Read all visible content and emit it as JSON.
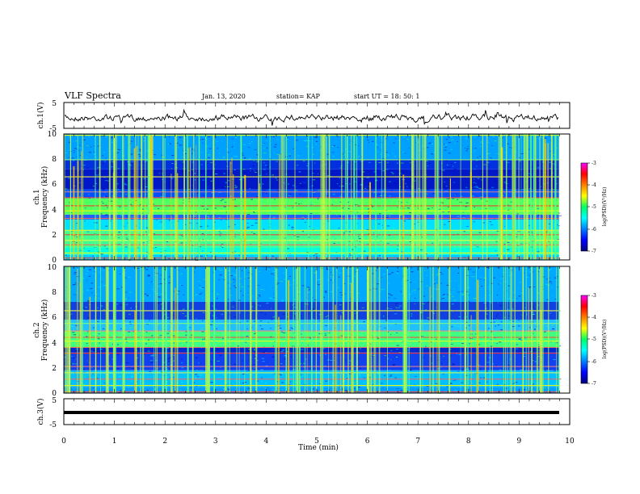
{
  "header": {
    "title": "VLF Spectra",
    "date": "Jan. 13, 2020",
    "station": "station= KAP",
    "start": "start  UT =   18: 50: 1"
  },
  "chart_data": [
    {
      "type": "line",
      "panel": "ch1-waveform",
      "ylabel": "ch.1(V)",
      "ylim": [
        -5,
        5
      ],
      "yticks": [
        "5",
        "-5"
      ],
      "xlim": [
        0,
        10
      ]
    },
    {
      "type": "heatmap",
      "panel": "ch1-spectrogram",
      "ylabel_line1": "ch.1",
      "ylabel_line2": "Frequency (kHz)",
      "ylim": [
        0,
        10
      ],
      "yticks": [
        "0",
        "2",
        "4",
        "6",
        "8",
        "10"
      ],
      "xlim": [
        0,
        10
      ],
      "colorbar": {
        "label": "log(PSD)(V²/Hz)",
        "range": [
          -7,
          -3
        ],
        "ticks": [
          "-3",
          "-4",
          "-5",
          "-6",
          "-7"
        ]
      }
    },
    {
      "type": "heatmap",
      "panel": "ch2-spectrogram",
      "ylabel_line1": "ch.2",
      "ylabel_line2": "Frequency (kHz)",
      "ylim": [
        0,
        10
      ],
      "yticks": [
        "0",
        "2",
        "4",
        "6",
        "8",
        "10"
      ],
      "xlim": [
        0,
        10
      ],
      "colorbar": {
        "label": "log(PSD)(V²/Hz)",
        "range": [
          -7,
          -3
        ],
        "ticks": [
          "-3",
          "-4",
          "-5",
          "-6",
          "-7"
        ]
      }
    },
    {
      "type": "line",
      "panel": "ch3-waveform",
      "ylabel": "ch.3(V)",
      "ylim": [
        -5,
        5
      ],
      "yticks": [
        "5",
        "-5"
      ],
      "xlim": [
        0,
        10
      ],
      "xlabel": "Time (min)",
      "xticks": [
        "0",
        "1",
        "2",
        "3",
        "4",
        "5",
        "6",
        "7",
        "8",
        "9",
        "10"
      ]
    }
  ]
}
